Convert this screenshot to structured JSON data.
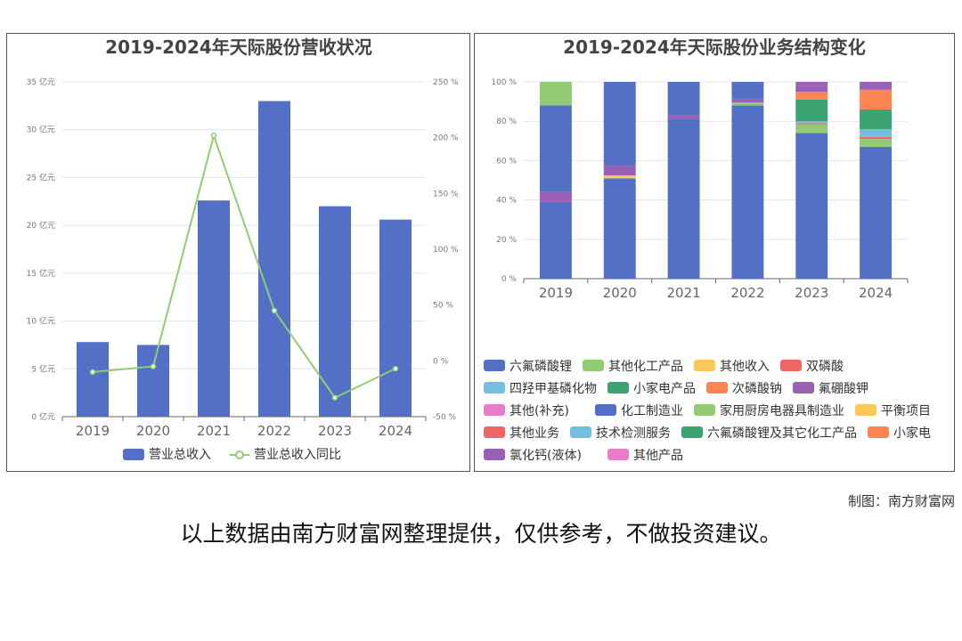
{
  "chart_data": [
    {
      "type": "bar+line",
      "title": "2019-2024年天际股份营收状况",
      "categories": [
        "2019",
        "2020",
        "2021",
        "2022",
        "2023",
        "2024"
      ],
      "series": [
        {
          "name": "营业总收入",
          "type": "bar",
          "axis": "left",
          "values": [
            7.8,
            7.5,
            22.6,
            33.0,
            22.0,
            20.6
          ],
          "color": "#5470c6"
        },
        {
          "name": "营业总收入同比",
          "type": "line",
          "axis": "right",
          "values": [
            -10,
            -5,
            202,
            45,
            -33,
            -7
          ],
          "color": "#91cc75"
        }
      ],
      "y_left": {
        "min": 0,
        "max": 35,
        "step": 5,
        "suffix": "亿元"
      },
      "y_right": {
        "min": -50,
        "max": 250,
        "step": 50,
        "suffix": "%"
      },
      "legend_position": "bottom"
    },
    {
      "type": "stacked-bar",
      "title": "2019-2024年天际股份业务结构变化",
      "categories": [
        "2019",
        "2020",
        "2021",
        "2022",
        "2023",
        "2024"
      ],
      "y": {
        "min": 0,
        "max": 100,
        "step": 20,
        "suffix": "%"
      },
      "legend_position": "bottom",
      "series": [
        {
          "name": "六氟磷酸锂",
          "color": "#5470c6",
          "values": [
            39,
            51,
            81,
            88,
            74,
            67
          ]
        },
        {
          "name": "其他化工产品",
          "color": "#91cc75",
          "values": [
            0,
            0,
            0,
            1.5,
            4.5,
            4
          ]
        },
        {
          "name": "其他收入",
          "color": "#fac858",
          "values": [
            0,
            1.5,
            0,
            0,
            0,
            0
          ]
        },
        {
          "name": "双磷酸",
          "color": "#ee6666",
          "values": [
            0,
            0,
            0,
            0,
            0.5,
            1
          ]
        },
        {
          "name": "四羟甲基磷化物",
          "color": "#73c0de",
          "values": [
            0,
            0,
            0,
            0,
            1,
            4
          ]
        },
        {
          "name": "小家电产品",
          "color": "#3ba272",
          "values": [
            0,
            0,
            0,
            0,
            11,
            10
          ]
        },
        {
          "name": "次磷酸钠",
          "color": "#fc8452",
          "values": [
            0,
            0,
            0,
            0,
            4,
            10
          ]
        },
        {
          "name": "氟硼酸钾",
          "color": "#9a60b4",
          "values": [
            5,
            5,
            2,
            2,
            3,
            4
          ]
        },
        {
          "name": "其他(补充)",
          "color": "#ea7ccc",
          "values": [
            0,
            0,
            0,
            0,
            0,
            0
          ]
        },
        {
          "name": "化工制造业",
          "color": "#5470c6",
          "values": [
            44,
            42.5,
            17,
            8.5,
            0,
            0
          ]
        },
        {
          "name": "家用厨房电器具制造业",
          "color": "#91cc75",
          "values": [
            12,
            0,
            0,
            0,
            0,
            0
          ]
        },
        {
          "name": "平衡项目",
          "color": "#fac858",
          "values": [
            0,
            0,
            0,
            0,
            0,
            0
          ]
        },
        {
          "name": "其他业务",
          "color": "#ee6666",
          "values": [
            0,
            0,
            0,
            0,
            0,
            0
          ]
        },
        {
          "name": "技术检测服务",
          "color": "#73c0de",
          "values": [
            0,
            0,
            0,
            0,
            0,
            0
          ]
        },
        {
          "name": "六氟磷酸锂及其它化工产品",
          "color": "#3ba272",
          "values": [
            0,
            0,
            0,
            0,
            0,
            0
          ]
        },
        {
          "name": "小家电",
          "color": "#fc8452",
          "values": [
            0,
            0,
            0,
            0,
            0,
            0
          ]
        },
        {
          "name": "氯化钙(液体)",
          "color": "#9a60b4",
          "values": [
            0,
            0,
            0,
            0,
            2,
            0
          ]
        },
        {
          "name": "其他产品",
          "color": "#ea7ccc",
          "values": [
            0,
            0,
            0,
            0,
            0,
            0
          ]
        }
      ]
    }
  ],
  "credit": "制图：南方财富网",
  "footer": "以上数据由南方财富网整理提供，仅供参考，不做投资建议。"
}
